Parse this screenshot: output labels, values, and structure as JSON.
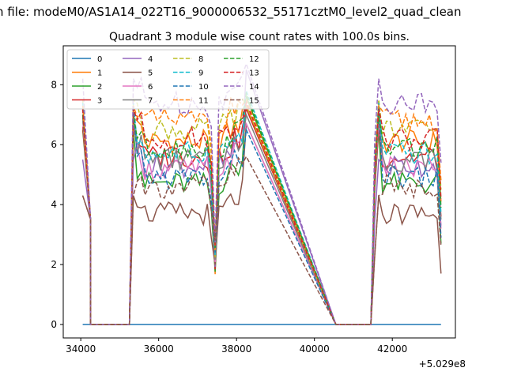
{
  "chart_data": {
    "type": "line",
    "suptitle": "n file: modeM0/AS1A14_022T16_9000006532_55171cztM0_level2_quad_clean",
    "title": "Quadrant 3 module wise count rates with 100.0s bins.",
    "xlabel": "",
    "ylabel": "",
    "x_offset_label": "+5.029e8",
    "xlim": [
      33550,
      43620
    ],
    "ylim": [
      -0.45,
      9.3
    ],
    "xticks": [
      34000,
      36000,
      38000,
      40000,
      42000
    ],
    "yticks": [
      0,
      2,
      4,
      6,
      8
    ],
    "segments": [
      {
        "start": 34050,
        "step": 100,
        "count": 3
      },
      {
        "start": 35350,
        "step": 100,
        "count": 30
      },
      {
        "start": 41550,
        "step": 100,
        "count": 18
      }
    ],
    "gap_zero_points": [
      34250,
      35250,
      40550,
      41450
    ],
    "series": [
      {
        "name": "0",
        "color": "#1f77b4",
        "style": "solid",
        "level": 0.0,
        "start": 0.0,
        "peak": 0.0
      },
      {
        "name": "1",
        "color": "#ff7f0e",
        "style": "solid",
        "level": 6.1,
        "start": 6.9,
        "peak": 7.3
      },
      {
        "name": "2",
        "color": "#2ca02c",
        "style": "solid",
        "level": 4.7,
        "start": 6.5,
        "peak": 7.6
      },
      {
        "name": "3",
        "color": "#d62728",
        "style": "solid",
        "level": 5.6,
        "start": 6.6,
        "peak": 7.2
      },
      {
        "name": "4",
        "color": "#9467bd",
        "style": "solid",
        "level": 5.3,
        "start": 5.5,
        "peak": 8.5
      },
      {
        "name": "5",
        "color": "#8c564b",
        "style": "solid",
        "level": 3.7,
        "start": 4.3,
        "peak": 6.7
      },
      {
        "name": "6",
        "color": "#e377c2",
        "style": "solid",
        "level": 5.2,
        "start": 6.8,
        "peak": 6.7
      },
      {
        "name": "7",
        "color": "#7f7f7f",
        "style": "solid",
        "level": 5.5,
        "start": 7.0,
        "peak": 7.0
      },
      {
        "name": "8",
        "color": "#bcbd22",
        "style": "dashed",
        "level": 6.5,
        "start": 7.5,
        "peak": 7.3
      },
      {
        "name": "9",
        "color": "#17becf",
        "style": "dashed",
        "level": 5.7,
        "start": 7.4,
        "peak": 7.8
      },
      {
        "name": "10",
        "color": "#1f77b4",
        "style": "dashed",
        "level": 4.9,
        "start": 7.2,
        "peak": 6.5
      },
      {
        "name": "11",
        "color": "#ff7f0e",
        "style": "dashed",
        "level": 6.8,
        "start": 7.3,
        "peak": 7.5
      },
      {
        "name": "12",
        "color": "#2ca02c",
        "style": "dashed",
        "level": 5.9,
        "start": 7.0,
        "peak": 7.7
      },
      {
        "name": "13",
        "color": "#d62728",
        "style": "dashed",
        "level": 6.2,
        "start": 7.2,
        "peak": 7.4
      },
      {
        "name": "14",
        "color": "#9467bd",
        "style": "dashed",
        "level": 7.4,
        "start": 8.2,
        "peak": 8.7
      },
      {
        "name": "15",
        "color": "#8c564b",
        "style": "dashed",
        "level": 4.6,
        "start": 4.3,
        "peak": 5.6
      }
    ],
    "legend": {
      "location": "upper-left",
      "columns": 4
    }
  }
}
